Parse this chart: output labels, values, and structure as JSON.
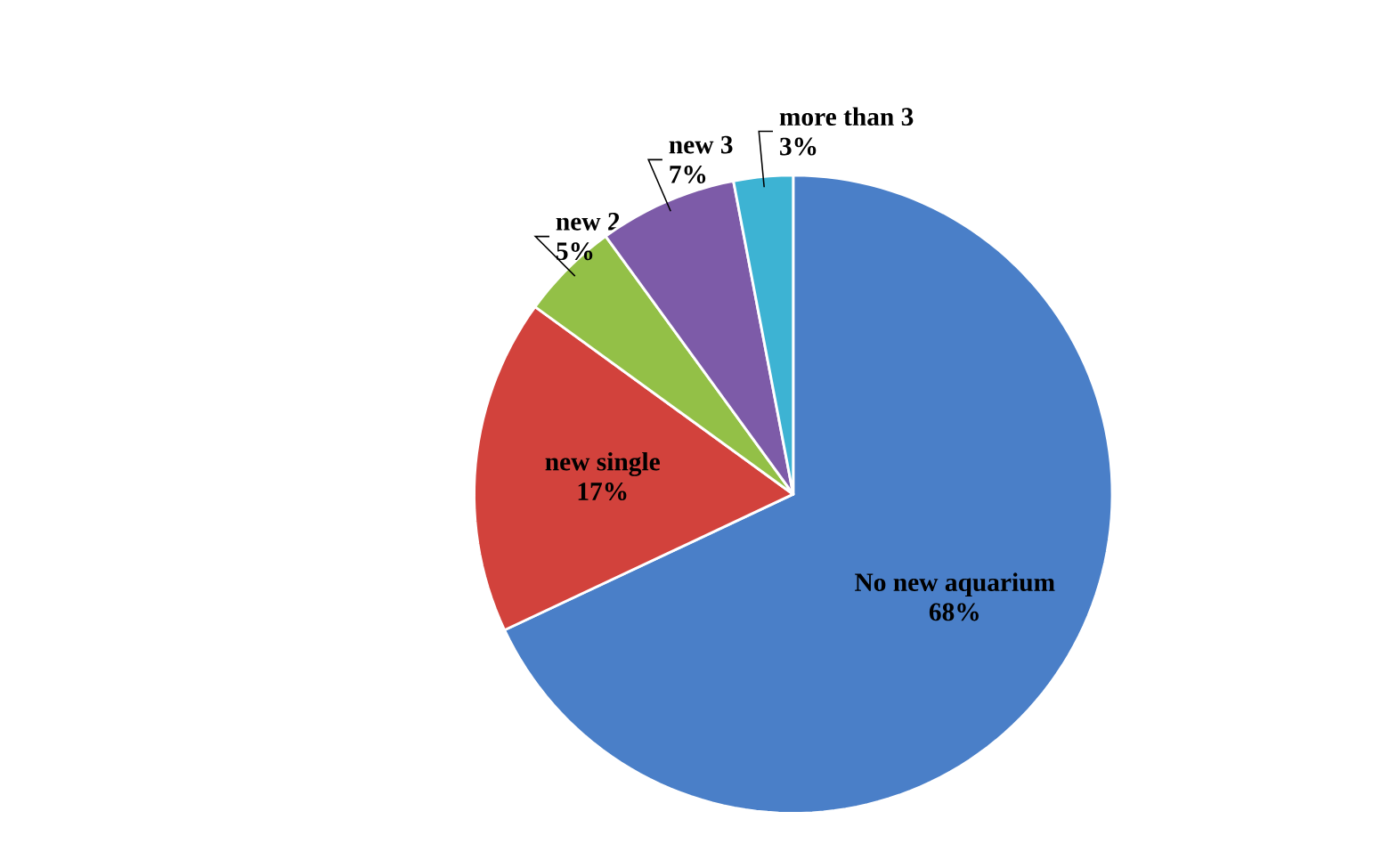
{
  "chart_data": {
    "type": "pie",
    "categories": [
      "No new aquarium",
      "new single",
      "new 2",
      "new 3",
      "more than 3"
    ],
    "values": [
      68,
      17,
      5,
      7,
      3
    ],
    "value_labels": [
      "68%",
      "17%",
      "5%",
      "7%",
      "3%"
    ],
    "colors": [
      "#4a7fc8",
      "#d2423c",
      "#93c047",
      "#7d5ba8",
      "#3db3d3"
    ]
  }
}
